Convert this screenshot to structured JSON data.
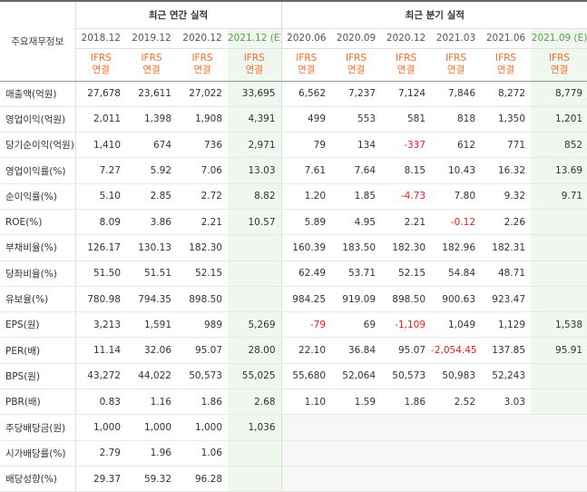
{
  "header": {
    "row_label": "주요재무정보",
    "annual_title": "최근 연간 실적",
    "quarter_title": "최근 분기 실적",
    "periods": [
      {
        "label": "2018.12",
        "est": ""
      },
      {
        "label": "2019.12",
        "est": ""
      },
      {
        "label": "2020.12",
        "est": ""
      },
      {
        "label": "2021.12",
        "est": "(E)"
      },
      {
        "label": "2020.06",
        "est": ""
      },
      {
        "label": "2020.09",
        "est": ""
      },
      {
        "label": "2020.12",
        "est": ""
      },
      {
        "label": "2021.03",
        "est": ""
      },
      {
        "label": "2021.06",
        "est": ""
      },
      {
        "label": "2021.09",
        "est": "(E)"
      }
    ],
    "ifrs_line1": "IFRS",
    "ifrs_line2": "연결"
  },
  "rows": [
    {
      "label": "매출액(억원)",
      "values": [
        "27,678",
        "23,611",
        "27,022",
        "33,695",
        "6,562",
        "7,237",
        "7,124",
        "7,846",
        "8,272",
        "8,779"
      ]
    },
    {
      "label": "영업이익(억원)",
      "values": [
        "2,011",
        "1,398",
        "1,908",
        "4,391",
        "499",
        "553",
        "581",
        "818",
        "1,350",
        "1,201"
      ]
    },
    {
      "label": "당기순이익(억원)",
      "values": [
        "1,410",
        "674",
        "736",
        "2,971",
        "79",
        "134",
        "-337",
        "612",
        "771",
        "852"
      ]
    },
    {
      "label": "영업이익률(%)",
      "values": [
        "7.27",
        "5.92",
        "7.06",
        "13.03",
        "7.61",
        "7.64",
        "8.15",
        "10.43",
        "16.32",
        "13.69"
      ]
    },
    {
      "label": "순이익률(%)",
      "values": [
        "5.10",
        "2.85",
        "2.72",
        "8.82",
        "1.20",
        "1.85",
        "-4.73",
        "7.80",
        "9.32",
        "9.71"
      ]
    },
    {
      "label": "ROE(%)",
      "values": [
        "8.09",
        "3.86",
        "2.21",
        "10.57",
        "5.89",
        "4.95",
        "2.21",
        "-0.12",
        "2.26",
        ""
      ]
    },
    {
      "label": "부채비율(%)",
      "values": [
        "126.17",
        "130.13",
        "182.30",
        "",
        "160.39",
        "183.50",
        "182.30",
        "182.96",
        "182.31",
        ""
      ]
    },
    {
      "label": "당좌비율(%)",
      "values": [
        "51.50",
        "51.51",
        "52.15",
        "",
        "62.49",
        "53.71",
        "52.15",
        "54.84",
        "48.71",
        ""
      ]
    },
    {
      "label": "유보율(%)",
      "values": [
        "780.98",
        "794.35",
        "898.50",
        "",
        "984.25",
        "919.09",
        "898.50",
        "900.63",
        "923.47",
        ""
      ]
    },
    {
      "label": "EPS(원)",
      "values": [
        "3,213",
        "1,591",
        "989",
        "5,269",
        "-79",
        "69",
        "-1,109",
        "1,049",
        "1,129",
        "1,538"
      ]
    },
    {
      "label": "PER(배)",
      "values": [
        "11.14",
        "32.06",
        "95.07",
        "28.00",
        "22.10",
        "36.84",
        "95.07",
        "-2,054.45",
        "137.85",
        "95.91"
      ]
    },
    {
      "label": "BPS(원)",
      "values": [
        "43,272",
        "44,022",
        "50,573",
        "55,025",
        "55,680",
        "52,064",
        "50,573",
        "50,983",
        "52,243",
        ""
      ]
    },
    {
      "label": "PBR(배)",
      "values": [
        "0.83",
        "1.16",
        "1.86",
        "2.68",
        "1.10",
        "1.59",
        "1.86",
        "2.52",
        "3.03",
        ""
      ]
    },
    {
      "label": "주당배당금(원)",
      "values": [
        "1,000",
        "1,000",
        "1,000",
        "1,036",
        "",
        "",
        "",
        "",
        "",
        ""
      ]
    },
    {
      "label": "시가배당률(%)",
      "values": [
        "2.79",
        "1.96",
        "1.06",
        "",
        "",
        "",
        "",
        "",
        "",
        ""
      ]
    },
    {
      "label": "배당성향(%)",
      "values": [
        "29.37",
        "59.32",
        "96.28",
        "",
        "",
        "",
        "",
        "",
        "",
        ""
      ]
    }
  ],
  "colors": {
    "accent_orange": "#f26c2a",
    "negative_red": "#e02020",
    "estimate_green": "#5a9a4a",
    "estimate_bg": "#f0f7ee"
  }
}
